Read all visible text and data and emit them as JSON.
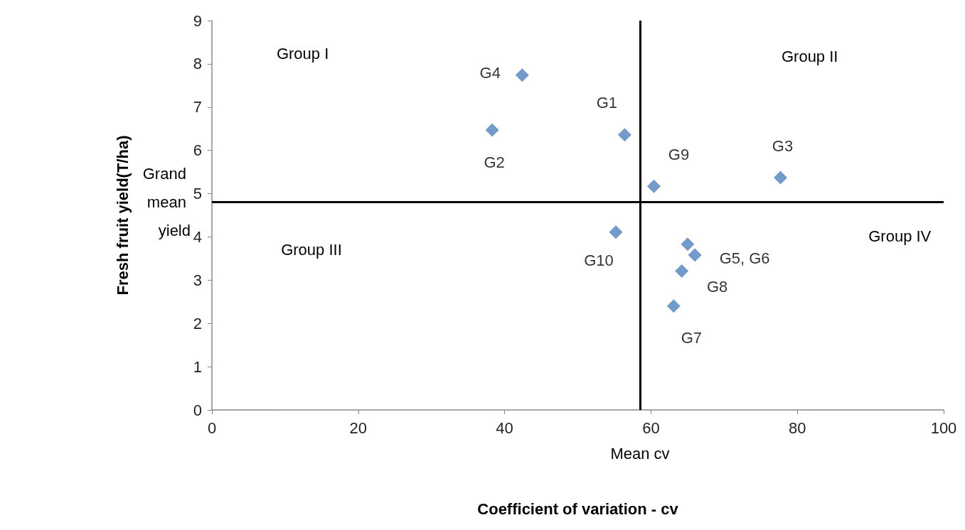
{
  "chart_data": {
    "type": "scatter",
    "xlabel": "Coefficient of variation - cv",
    "ylabel": "Fresh fruit yield(T/ha)",
    "x": [
      56.4,
      38.3,
      77.7,
      42.4,
      65.0,
      66.0,
      63.1,
      64.2,
      60.4,
      55.2
    ],
    "values": [
      6.36,
      6.47,
      5.37,
      7.74,
      3.83,
      3.58,
      2.4,
      3.21,
      5.17,
      4.11
    ],
    "value_labels": [
      "G1",
      "G2",
      "G3",
      "G4",
      null,
      "G5, G6",
      "G7",
      "G8",
      "G9",
      "G10"
    ],
    "color": "#4f81bd",
    "marker": "diamond",
    "grid": false,
    "xlim": [
      0,
      100
    ],
    "xticks": [
      0,
      20,
      40,
      60,
      80,
      100
    ],
    "ylim": [
      0,
      9
    ],
    "yticks": [
      0,
      1,
      2,
      3,
      4,
      5,
      6,
      7,
      8,
      9
    ],
    "ref_lines": [
      {
        "axis": "x",
        "value": 58.5,
        "label": "Mean cv",
        "color": "#000000"
      },
      {
        "axis": "y",
        "value": 4.8,
        "label": "Grand mean yield",
        "color": "#000000"
      }
    ],
    "annotations": [
      "Group I",
      "Group II",
      "Group III",
      "Group IV"
    ]
  }
}
